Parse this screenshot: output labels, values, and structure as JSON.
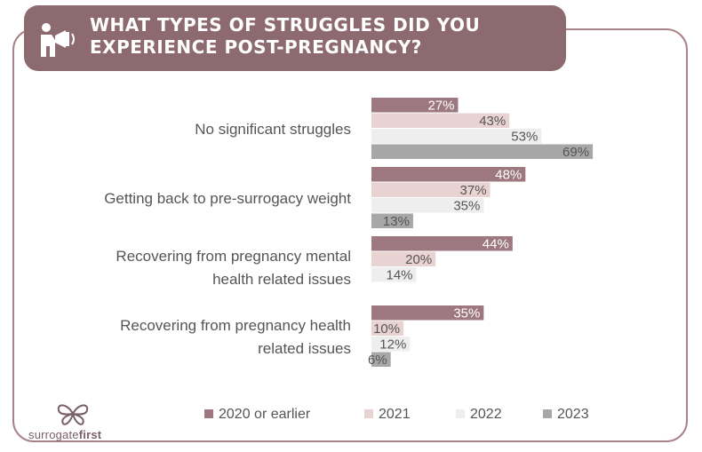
{
  "header": {
    "title": "WHAT TYPES OF STRUGGLES DID YOU EXPERIENCE POST-PREGNANCY?",
    "icon": "megaphone-person-icon"
  },
  "brand": {
    "logo_icon": "butterfly-logo-icon",
    "name_light": "surrogate",
    "name_bold": "first"
  },
  "colors": {
    "header_bg": "#8d6a70",
    "frame": "#a88288",
    "s2020": "#9e7880",
    "s2021": "#e9d2d2",
    "s2022": "#eeeeee",
    "s2023": "#a7a7a7"
  },
  "chart_data": {
    "type": "bar",
    "orientation": "horizontal",
    "categories": [
      [
        "No significant struggles"
      ],
      [
        "Getting back to pre-surrogacy weight"
      ],
      [
        "Recovering from pregnancy mental",
        "health related issues"
      ],
      [
        "Recovering from pregnancy health",
        "related issues"
      ]
    ],
    "series": [
      {
        "name": "2020 or earlier",
        "values": [
          27,
          48,
          44,
          35
        ],
        "labels": [
          "27%",
          "48%",
          "44%",
          "35%"
        ]
      },
      {
        "name": "2021",
        "values": [
          43,
          37,
          20,
          10
        ],
        "labels": [
          "43%",
          "37%",
          "20%",
          "10%"
        ]
      },
      {
        "name": "2022",
        "values": [
          53,
          35,
          14,
          12
        ],
        "labels": [
          "53%",
          "35%",
          "14%",
          "12%"
        ]
      },
      {
        "name": "2023",
        "values": [
          69,
          13,
          null,
          6
        ],
        "labels": [
          "69%",
          "13%",
          "",
          "6%"
        ]
      }
    ],
    "xlim": [
      0,
      100
    ],
    "grid": false,
    "legend": "bottom"
  }
}
